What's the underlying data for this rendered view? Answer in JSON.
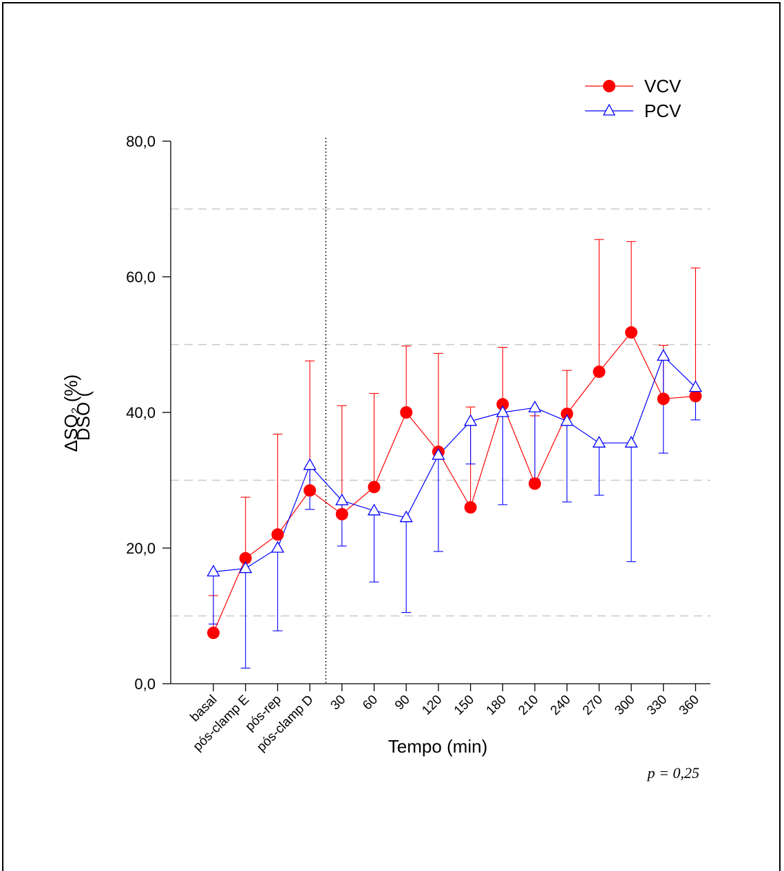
{
  "chart_data": {
    "type": "line",
    "categories": [
      "basal",
      "pós-clamp E",
      "pós-rep",
      "pós-clamp D",
      "30",
      "60",
      "90",
      "120",
      "150",
      "180",
      "210",
      "240",
      "270",
      "300",
      "330",
      "360"
    ],
    "xlabel": "Tempo (min)",
    "ylabel": "ΔSO₂ (%)",
    "ylabel_ghost": "DSO (",
    "ylim": [
      0,
      80
    ],
    "yticks": [
      "0,0",
      "20,0",
      "40,0",
      "60,0",
      "80,0"
    ],
    "gridlines": [
      10,
      30,
      50,
      70
    ],
    "grid": "horizontal dashed at 10, 30, 50, 70",
    "reference_line": "vertical dotted line between pós-clamp D and 30",
    "legend_position": "top-right",
    "annotation": "p = 0,25",
    "series": [
      {
        "name": "VCV",
        "color": "#ff0000",
        "marker": "filled-circle",
        "values": [
          7.5,
          18.5,
          22.0,
          28.5,
          25.0,
          29.0,
          40.0,
          34.2,
          26.0,
          41.2,
          29.5,
          39.8,
          46.0,
          51.8,
          42.0,
          42.4
        ],
        "error_dir": "up",
        "error_ends": [
          13.0,
          27.5,
          36.8,
          47.6,
          41.0,
          42.8,
          49.8,
          48.7,
          40.8,
          49.6,
          39.5,
          46.2,
          65.5,
          65.2,
          49.9,
          61.3
        ]
      },
      {
        "name": "PCV",
        "color": "#0000ff",
        "marker": "open-triangle",
        "values": [
          16.5,
          17.0,
          20.0,
          32.2,
          27.0,
          25.5,
          24.5,
          33.7,
          38.7,
          40.0,
          40.7,
          38.7,
          35.5,
          35.5,
          48.3,
          43.7
        ],
        "error_dir": "down",
        "error_ends": [
          8.8,
          2.3,
          7.8,
          25.7,
          20.3,
          15.0,
          10.5,
          19.5,
          32.4,
          26.4,
          30.2,
          26.8,
          27.8,
          18.0,
          34.0,
          38.9
        ]
      }
    ]
  }
}
